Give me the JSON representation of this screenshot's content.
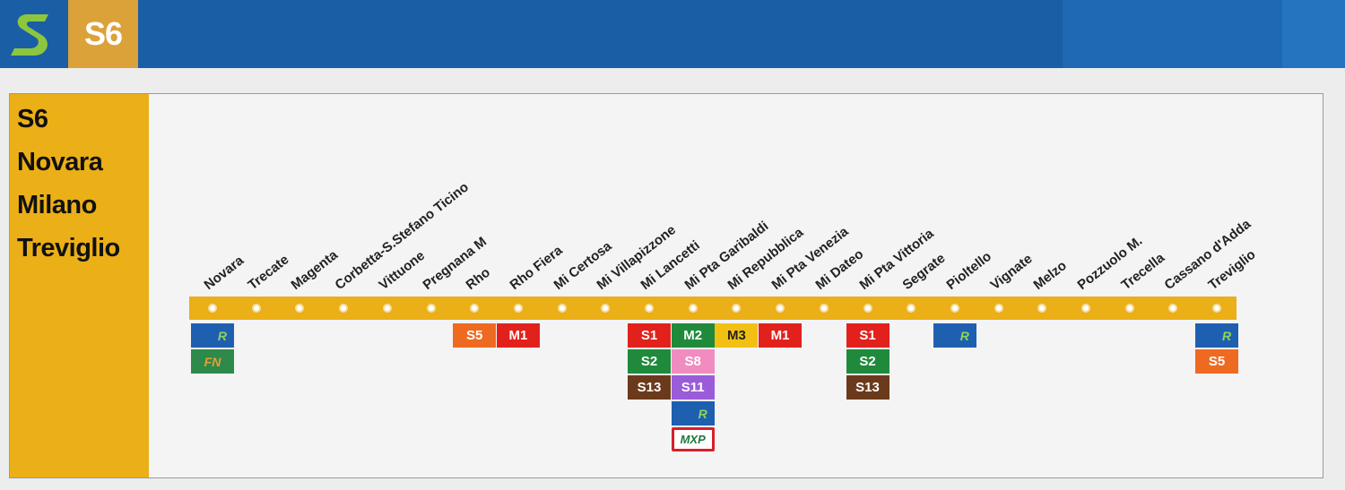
{
  "header": {
    "logo_letter": "S",
    "line_code": "S6"
  },
  "sidebar": {
    "lines": [
      "S6",
      "Novara",
      "Milano",
      "Treviglio"
    ]
  },
  "stations": [
    "Novara",
    "Trecate",
    "Magenta",
    "Corbetta-S.Stefano Ticino",
    "Vittuone",
    "Pregnana M",
    "Rho",
    "Rho Fiera",
    "Mi Certosa",
    "Mi Villapizzone",
    "Mi Lancetti",
    "Mi Pta Garibaldi",
    "Mi Repubblica",
    "Mi Pta Venezia",
    "Mi Dateo",
    "Mi Pta Vittoria",
    "Segrate",
    "Pioltello",
    "Vignate",
    "Melzo",
    "Pozzuolo M.",
    "Trecella",
    "Cassano d'Adda",
    "Treviglio"
  ],
  "connections": [
    {
      "station": 0,
      "items": [
        {
          "label": "R",
          "bg": "#1f5fb0",
          "fg": "#8bd45a",
          "style": "italic"
        },
        {
          "label": "FN",
          "bg": "#2e8a4a",
          "fg": "#e8a030",
          "style": "italic"
        }
      ]
    },
    {
      "station": 6,
      "items": [
        {
          "label": "S5",
          "bg": "#ef6a21",
          "fg": "#ffffff"
        }
      ]
    },
    {
      "station": 7,
      "items": [
        {
          "label": "M1",
          "bg": "#e2211c",
          "fg": "#ffffff"
        }
      ]
    },
    {
      "station": 10,
      "items": [
        {
          "label": "S1",
          "bg": "#e2211c",
          "fg": "#ffffff"
        },
        {
          "label": "S2",
          "bg": "#1f8a3c",
          "fg": "#ffffff"
        },
        {
          "label": "S13",
          "bg": "#6b3a1c",
          "fg": "#ffffff"
        }
      ]
    },
    {
      "station": 11,
      "items": [
        {
          "label": "M2",
          "bg": "#1f8a3c",
          "fg": "#ffffff"
        },
        {
          "label": "S8",
          "bg": "#f08cc0",
          "fg": "#ffffff"
        },
        {
          "label": "S11",
          "bg": "#9a5cd9",
          "fg": "#ffffff"
        },
        {
          "label": "R",
          "bg": "#1f5fb0",
          "fg": "#8bd45a",
          "style": "italic"
        },
        {
          "label": "MXP",
          "bg": "#ffffff",
          "fg": "#1c7a3a",
          "style": "mxp"
        }
      ]
    },
    {
      "station": 12,
      "items": [
        {
          "label": "M3",
          "bg": "#f2c012",
          "fg": "#222222"
        }
      ]
    },
    {
      "station": 13,
      "items": [
        {
          "label": "M1",
          "bg": "#e2211c",
          "fg": "#ffffff"
        }
      ]
    },
    {
      "station": 15,
      "items": [
        {
          "label": "S1",
          "bg": "#e2211c",
          "fg": "#ffffff"
        },
        {
          "label": "S2",
          "bg": "#1f8a3c",
          "fg": "#ffffff"
        },
        {
          "label": "S13",
          "bg": "#6b3a1c",
          "fg": "#ffffff"
        }
      ]
    },
    {
      "station": 17,
      "items": [
        {
          "label": "R",
          "bg": "#1f5fb0",
          "fg": "#8bd45a",
          "style": "italic"
        }
      ]
    },
    {
      "station": 23,
      "items": [
        {
          "label": "R",
          "bg": "#1f5fb0",
          "fg": "#8bd45a",
          "style": "italic"
        },
        {
          "label": "S5",
          "bg": "#ef6a21",
          "fg": "#ffffff"
        }
      ]
    }
  ],
  "colors": {
    "header_blue": "#1a5ea6",
    "line_orange": "#dba23a",
    "track_yellow": "#ebaf17",
    "logo_green": "#8cc63f"
  }
}
